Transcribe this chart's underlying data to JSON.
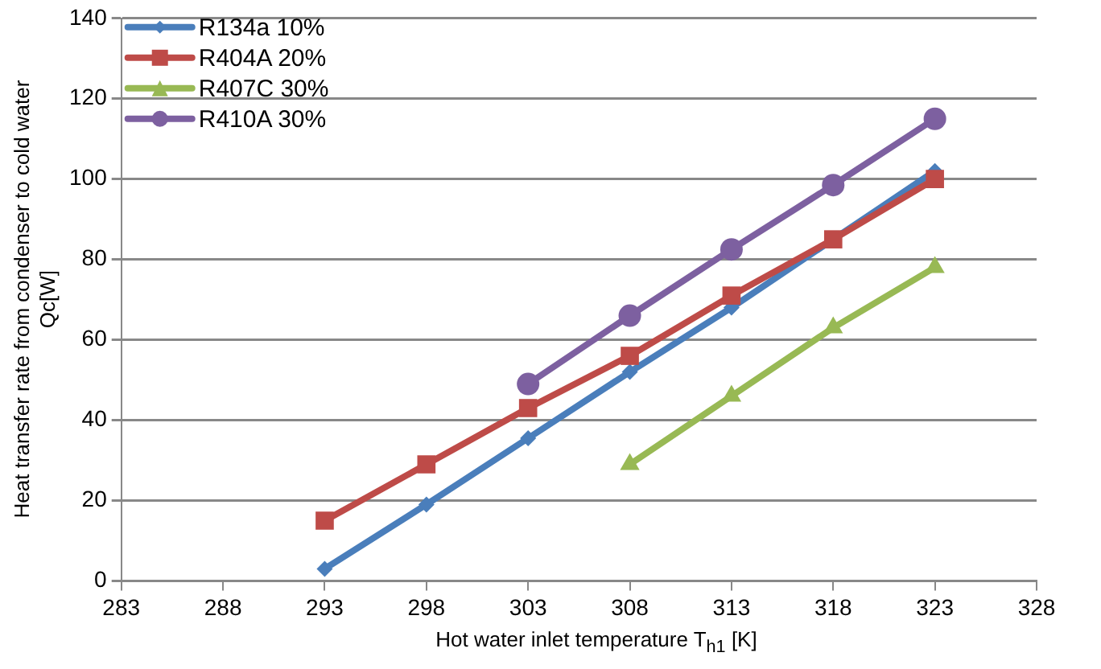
{
  "chart_data": {
    "type": "line",
    "xlabel": "Hot water inlet temperature T$_{h1}$ [K]",
    "ylabel": "Heat transfer rate from condenser to cold water\nQc[W]",
    "x": [
      293,
      298,
      303,
      308,
      313,
      318,
      323
    ],
    "series": [
      {
        "name": "R134a 10%",
        "color": "#4a7ebb",
        "marker": "diamond",
        "values": [
          3,
          19,
          35.5,
          52,
          68,
          85,
          102
        ]
      },
      {
        "name": "R404A 20%",
        "color": "#be4b48",
        "marker": "square",
        "values": [
          15,
          29,
          43,
          56,
          71,
          85,
          100
        ]
      },
      {
        "name": "R407C 30%",
        "color": "#98b954",
        "marker": "triangle",
        "values": [
          null,
          null,
          null,
          29,
          46,
          63,
          78
        ]
      },
      {
        "name": "R410A 30%",
        "color": "#7d60a0",
        "marker": "circle",
        "values": [
          null,
          null,
          49,
          66,
          82.5,
          98.5,
          115
        ]
      }
    ],
    "xlim": [
      283,
      328
    ],
    "xticks": [
      283,
      288,
      293,
      298,
      303,
      308,
      313,
      318,
      323,
      328
    ],
    "ylim": [
      0,
      140
    ],
    "yticks": [
      0,
      20,
      40,
      60,
      80,
      100,
      120,
      140
    ],
    "grid": "y",
    "legend": "top left",
    "line_style": "solid"
  }
}
